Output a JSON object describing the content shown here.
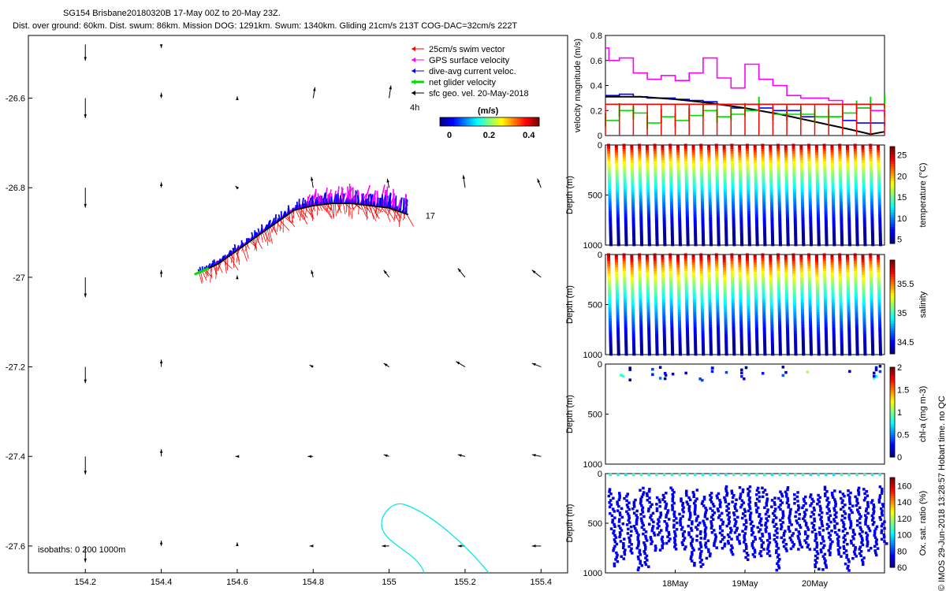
{
  "title": "SG154 Brisbane20180320B 17-May 00Z to 20-May 23Z.",
  "subtitle": "Dist. over ground: 60km. Dist. swum: 86km. Mission DOG: 1291km. Swum: 1340km. Gliding 21cm/s 213T COG-DAC=32cm/s 222T",
  "stamp": "© IMOS 29-Jun-2018 13:28:57 Hobart time. no QC",
  "chart_data": [
    {
      "type": "scatter",
      "name": "map",
      "x_ticks": [
        "154.2",
        "154.4",
        "154.6",
        "154.8",
        "155",
        "155.2",
        "155.4"
      ],
      "y_ticks": [
        "-26.6",
        "-26.8",
        "-27",
        "-27.2",
        "-27.4",
        "-27.6"
      ],
      "xlim": [
        154.05,
        155.47
      ],
      "ylim": [
        -27.66,
        -26.46
      ],
      "grid": false,
      "legend": {
        "items": [
          {
            "label": "25cm/s swim vector",
            "color": "#ff0000"
          },
          {
            "label": "GPS surface velocity",
            "color": "#ff00ff"
          },
          {
            "label": "dive-avg current veloc.",
            "color": "#0000ff"
          },
          {
            "label": "net glider velocity",
            "color": "#00dd00"
          },
          {
            "label": "sfc geo. vel. 20-May-2018",
            "color": "#000000"
          }
        ],
        "placement": "top-right"
      },
      "annotations": [
        "4h",
        "17"
      ],
      "colorbar": {
        "label": "(m/s)",
        "ticks": [
          "0",
          "0.2",
          "0.4"
        ],
        "range": [
          0,
          0.5
        ]
      },
      "isobaths_label": "isobaths: 0    200  1000m",
      "track": {
        "lon": [
          154.5,
          154.55,
          154.6,
          154.65,
          154.7,
          154.75,
          154.8,
          154.85,
          154.9,
          154.95,
          155.0,
          155.05
        ],
        "lat": [
          -26.99,
          -26.97,
          -26.94,
          -26.91,
          -26.88,
          -26.85,
          -26.84,
          -26.835,
          -26.835,
          -26.84,
          -26.845,
          -26.86
        ]
      },
      "geo_vectors": {
        "lon": [
          154.2,
          154.4,
          154.6,
          154.8,
          155.0,
          155.2,
          155.4
        ],
        "lat": [
          -26.48,
          -26.6,
          -26.8,
          -27.0,
          -27.2,
          -27.4,
          -27.6
        ],
        "u": [
          [
            0.0,
            0.0,
            0.0,
            0.0,
            0.0,
            0.0,
            0.0
          ],
          [
            0.0,
            0.0,
            0.0,
            0.01,
            0.01,
            0.0,
            0.0
          ],
          [
            0.0,
            0.0,
            -0.01,
            -0.01,
            -0.01,
            -0.01,
            -0.02
          ],
          [
            0.0,
            0.0,
            0.0,
            -0.01,
            -0.03,
            -0.04,
            -0.05
          ],
          [
            0.0,
            0.0,
            0.0,
            -0.02,
            -0.03,
            -0.05,
            -0.05
          ],
          [
            0.0,
            0.0,
            -0.01,
            -0.03,
            -0.03,
            -0.04,
            -0.05
          ],
          [
            0.0,
            0.0,
            0.0,
            -0.02,
            -0.04,
            -0.04,
            -0.05
          ]
        ],
        "v": [
          [
            -0.09,
            -0.02,
            0,
            0,
            0,
            0,
            0
          ],
          [
            -0.11,
            0.03,
            0.01,
            0.06,
            0.07,
            0,
            0
          ],
          [
            -0.11,
            0.03,
            0.01,
            0.06,
            0.05,
            0.07,
            0.05
          ],
          [
            -0.11,
            0.04,
            0.01,
            0.04,
            0.04,
            0.05,
            0.04
          ],
          [
            -0.09,
            0.04,
            0.0,
            0.01,
            0.02,
            0.03,
            0.02
          ],
          [
            -0.1,
            0.04,
            0.0,
            0.0,
            0.01,
            0.01,
            0.01
          ],
          [
            -0.09,
            0.03,
            0.02,
            0.0,
            0.0,
            0.0,
            0.0
          ]
        ]
      }
    },
    {
      "type": "line",
      "name": "velocity",
      "ylabel": "velocity magnitude (m/s)",
      "ylim": [
        0,
        0.8
      ],
      "y_ticks": [
        "0",
        "0.2",
        "0.4",
        "0.6",
        "0.8"
      ],
      "xlim": [
        17.0,
        21.0
      ],
      "series": [
        {
          "name": "GPS surface velocity",
          "color": "#ff00ff",
          "x": [
            17.0,
            17.05,
            17.2,
            17.4,
            17.6,
            17.8,
            18.0,
            18.2,
            18.4,
            18.6,
            18.8,
            19.0,
            19.2,
            19.4,
            19.6,
            19.8,
            20.0,
            20.2,
            20.4,
            20.6,
            20.8,
            21.0
          ],
          "y": [
            0.7,
            0.6,
            0.62,
            0.5,
            0.45,
            0.48,
            0.44,
            0.5,
            0.62,
            0.46,
            0.38,
            0.57,
            0.45,
            0.4,
            0.32,
            0.3,
            0.3,
            0.28,
            0.25,
            0.22,
            0.2,
            0.15
          ]
        },
        {
          "name": "dive-avg current veloc.",
          "color": "#0000ff",
          "x": [
            17.0,
            17.2,
            17.4,
            17.6,
            17.8,
            18.0,
            18.2,
            18.4,
            18.6,
            18.8,
            19.0,
            19.2,
            19.4,
            19.6,
            19.8,
            20.0,
            20.2,
            20.4,
            20.6,
            20.8,
            21.0
          ],
          "y": [
            0.32,
            0.33,
            0.31,
            0.3,
            0.3,
            0.29,
            0.28,
            0.27,
            0.25,
            0.22,
            0.25,
            0.22,
            0.2,
            0.2,
            0.15,
            0.15,
            0.15,
            0.12,
            0.1,
            0.1,
            0.08
          ]
        },
        {
          "name": "sfc geo. vel.",
          "color": "#000000",
          "x": [
            17.0,
            17.5,
            18.0,
            18.5,
            19.0,
            19.5,
            20.0,
            20.5,
            20.8,
            21.0
          ],
          "y": [
            0.31,
            0.31,
            0.29,
            0.26,
            0.22,
            0.17,
            0.11,
            0.05,
            0.01,
            0.03
          ]
        },
        {
          "name": "net glider velocity",
          "color": "#00dd00",
          "x": [
            17.0,
            17.2,
            17.4,
            17.6,
            17.8,
            18.0,
            18.2,
            18.4,
            18.6,
            18.8,
            19.0,
            19.2,
            19.4,
            19.6,
            19.8,
            20.0,
            20.2,
            20.4,
            20.6,
            20.8,
            21.0
          ],
          "y": [
            0.12,
            0.2,
            0.18,
            0.1,
            0.15,
            0.12,
            0.16,
            0.2,
            0.15,
            0.17,
            0.2,
            0.25,
            0.17,
            0.17,
            0.17,
            0.15,
            0.15,
            0.18,
            0.22,
            0.25,
            0.27
          ]
        },
        {
          "name": "25cm/s swim vector",
          "color": "#ff0000",
          "x": [
            17.0,
            17.2,
            17.4,
            17.6,
            17.8,
            18.0,
            18.2,
            18.4,
            18.6,
            18.8,
            19.0,
            19.2,
            19.4,
            19.6,
            19.8,
            20.0,
            20.2,
            20.4,
            20.6,
            20.8,
            21.0
          ],
          "y": [
            0.25,
            0.25,
            0.25,
            0.25,
            0.25,
            0.25,
            0.25,
            0.25,
            0.25,
            0.25,
            0.25,
            0.25,
            0.25,
            0.25,
            0.25,
            0.25,
            0.25,
            0.25,
            0.25,
            0.25,
            0.25
          ]
        }
      ]
    },
    {
      "type": "heatmap",
      "name": "temperature",
      "ylabel": "Depth (m)",
      "colorbar_label": "temperature (°C)",
      "y_ticks": [
        "0",
        "500",
        "1000"
      ],
      "ylim": [
        1000,
        0
      ],
      "cbar_ticks": [
        "5",
        "10",
        "15",
        "20",
        "25"
      ],
      "cbar_range": [
        4,
        27
      ],
      "value_top": 25,
      "value_bottom": 5
    },
    {
      "type": "heatmap",
      "name": "salinity",
      "ylabel": "Depth (m)",
      "colorbar_label": "salinity",
      "y_ticks": [
        "0",
        "500",
        "1000"
      ],
      "ylim": [
        1000,
        0
      ],
      "cbar_ticks": [
        "34.5",
        "35",
        "35.5"
      ],
      "cbar_range": [
        34.3,
        35.9
      ],
      "value_top": 35.8,
      "value_bottom": 34.4
    },
    {
      "type": "scatter",
      "name": "chla",
      "ylabel": "Depth (m)",
      "colorbar_label": "chl-a (mg m-3)",
      "y_ticks": [
        "0",
        "500",
        "1000"
      ],
      "ylim": [
        1000,
        0
      ],
      "cbar_ticks": [
        "0",
        "0.5",
        "1",
        "1.5",
        "2"
      ],
      "cbar_range": [
        0,
        2
      ]
    },
    {
      "type": "scatter",
      "name": "oxygen",
      "ylabel": "Depth (m)",
      "colorbar_label": "Ox. sat. ratio (%)",
      "y_ticks": [
        "0",
        "500",
        "1000"
      ],
      "ylim": [
        1000,
        0
      ],
      "cbar_ticks": [
        "60",
        "80",
        "100",
        "120",
        "140",
        "160"
      ],
      "cbar_range": [
        60,
        170
      ],
      "x_ticks": [
        "18May",
        "19May",
        "20May"
      ]
    }
  ]
}
